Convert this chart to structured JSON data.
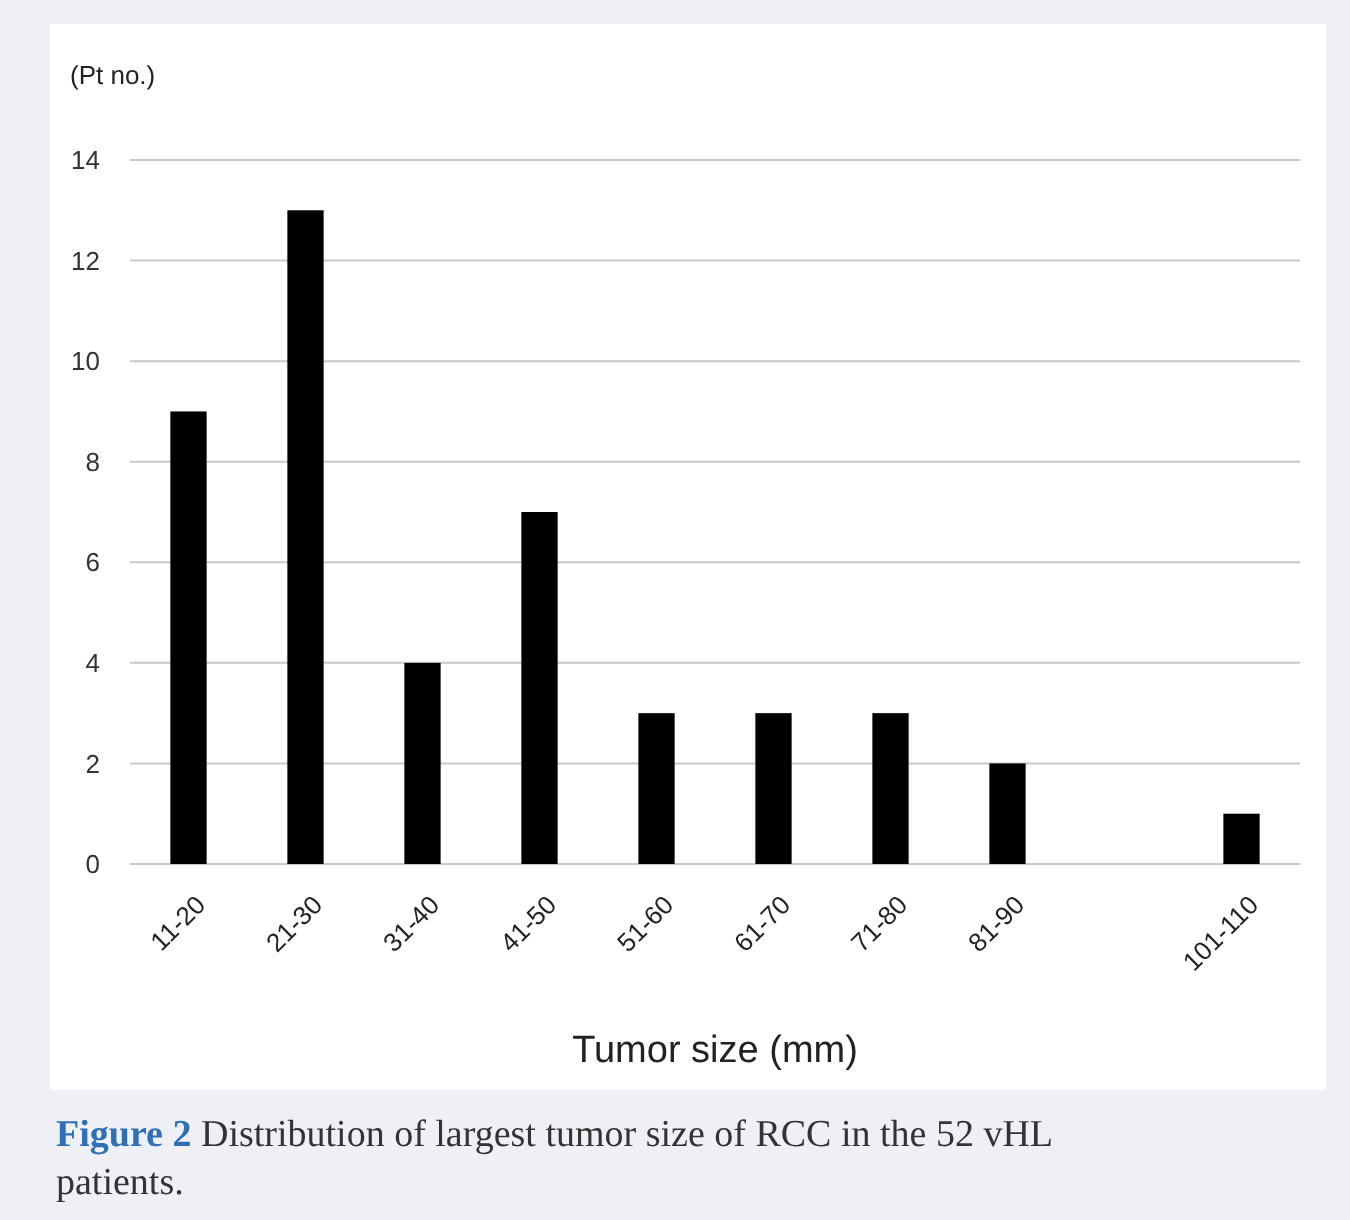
{
  "chart_data": {
    "type": "bar",
    "ylabel": "(Pt no.)",
    "xlabel": "Tumor size (mm)",
    "categories": [
      "11-20",
      "21-30",
      "31-40",
      "41-50",
      "51-60",
      "61-70",
      "71-80",
      "81-90",
      null,
      "101-110"
    ],
    "values": [
      9,
      13,
      4,
      7,
      3,
      3,
      3,
      2,
      null,
      1
    ],
    "color": "#000000",
    "ylim": [
      0,
      14
    ],
    "yticks": [
      0,
      2,
      4,
      6,
      8,
      10,
      12,
      14
    ],
    "grid": "y",
    "annotations": [
      "Figure 2 Distribution of largest tumor size of RCC in the 52 vHL patients."
    ]
  }
}
